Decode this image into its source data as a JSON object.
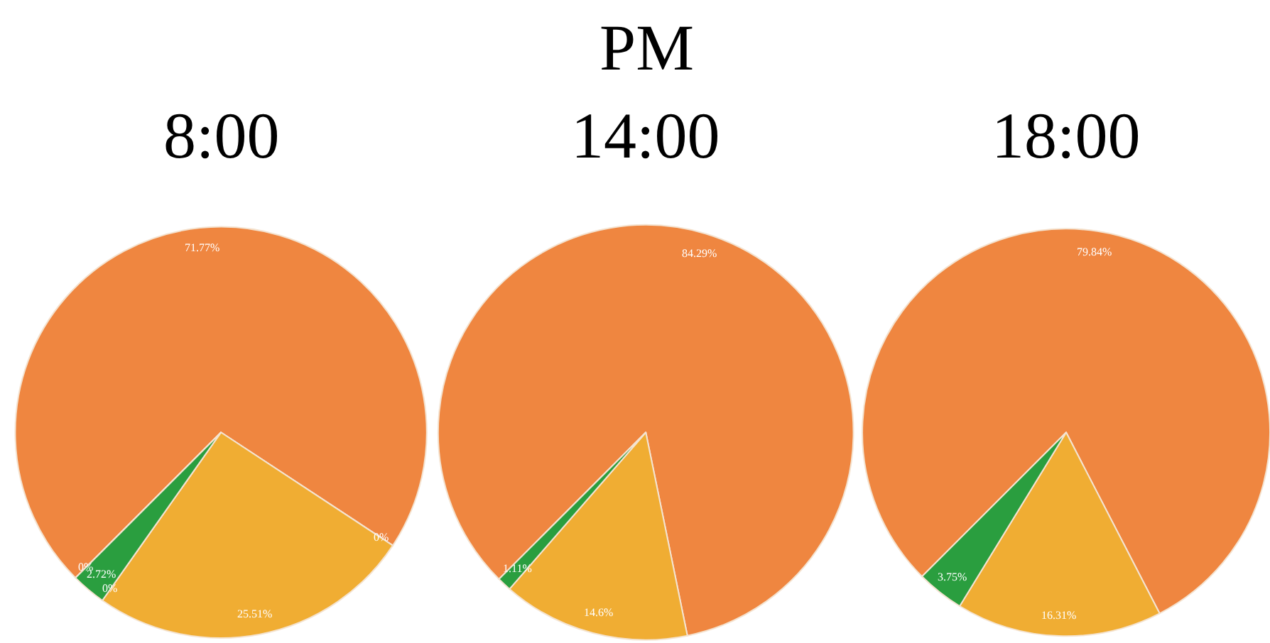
{
  "chart_data": [
    {
      "type": "pie",
      "title": "8:00",
      "categories": [
        null,
        null,
        null,
        null,
        null,
        null
      ],
      "values": [
        71.77,
        0,
        25.51,
        0,
        2.72,
        0
      ],
      "colors": [
        "#ef8640",
        "#3b75af",
        "#f0ad33",
        "#c53a32",
        "#2a9e3f",
        "#8d6ab8"
      ],
      "value_labels": [
        "71.77%",
        "0%",
        "25.51%",
        "0%",
        "2.72%",
        "0%"
      ],
      "legend": false
    },
    {
      "type": "pie",
      "title": "PM",
      "subtitle": "14:00",
      "categories": [
        null,
        null,
        null
      ],
      "values": [
        84.29,
        14.6,
        1.11
      ],
      "colors": [
        "#ef8640",
        "#f0ad33",
        "#2a9e3f"
      ],
      "value_labels": [
        "84.29%",
        "14.6%",
        "1.11%"
      ],
      "legend": false
    },
    {
      "type": "pie",
      "title": "18:00",
      "categories": [
        null,
        null,
        null
      ],
      "values": [
        79.84,
        16.31,
        3.75
      ],
      "colors": [
        "#ef8640",
        "#f0ad33",
        "#2a9e3f"
      ],
      "value_labels": [
        "79.84%",
        "16.31%",
        "3.75%"
      ],
      "legend": false
    }
  ]
}
